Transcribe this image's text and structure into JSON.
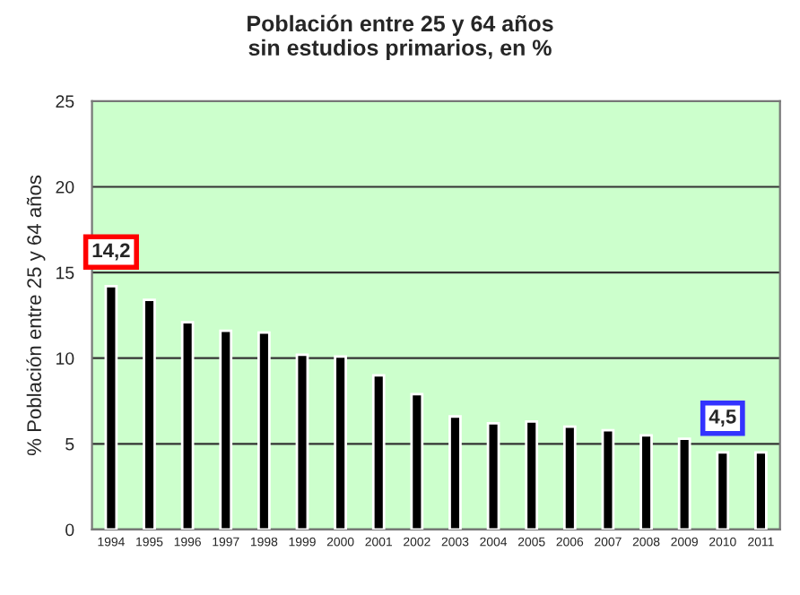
{
  "chart_data": {
    "type": "bar",
    "title": "Población entre 25 y 64 años\nsin estudios primarios, en %",
    "ylabel": "% Población entre 25 y 64 años",
    "categories": [
      "1994",
      "1995",
      "1996",
      "1997",
      "1998",
      "1999",
      "2000",
      "2001",
      "2002",
      "2003",
      "2004",
      "2005",
      "2006",
      "2007",
      "2008",
      "2009",
      "2010",
      "2011"
    ],
    "values": [
      14.2,
      13.4,
      12.1,
      11.6,
      11.5,
      10.2,
      10.1,
      9.0,
      7.9,
      6.6,
      6.2,
      6.3,
      6.0,
      5.8,
      5.5,
      5.3,
      4.5,
      4.5
    ],
    "color": "#000000",
    "ylim": [
      0,
      25
    ],
    "yticks": [
      0,
      5,
      10,
      15,
      20,
      25
    ],
    "grid": "y",
    "legend": false,
    "annotations": [
      {
        "text": "14,2",
        "x": "1994",
        "y": 14.2
      },
      {
        "text": "4,5",
        "x": "2010",
        "y": 4.5
      }
    ]
  }
}
